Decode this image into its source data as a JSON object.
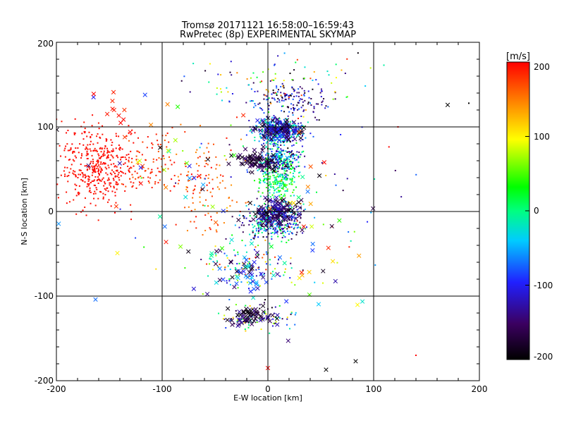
{
  "colors": {
    "background": "#ffffff",
    "axes": "#000000",
    "colorbar_scale": [
      "#000000",
      "#3b0060",
      "#2020ff",
      "#00ffff",
      "#00ff00",
      "#ffff00",
      "#ff8000",
      "#ff0000"
    ]
  },
  "chart_data": {
    "type": "scatter",
    "title": "Tromsø 20171121 16:58:00–16:59:43",
    "subtitle": "RwPretec (8p) EXPERIMENTAL SKYMAP",
    "xlabel": "E-W location [km]",
    "ylabel": "N-S location [km]",
    "xlim": [
      -200,
      200
    ],
    "ylim": [
      -200,
      200
    ],
    "x_ticks": [
      "-200",
      "-100",
      "0",
      "100",
      "200"
    ],
    "y_ticks": [
      "-200",
      "-100",
      "0",
      "100",
      "200"
    ],
    "grid_lines": [
      -100,
      0,
      100
    ],
    "grid": true,
    "markers": [
      "point",
      "x"
    ],
    "colorbar": {
      "label": "[m/s]",
      "range": [
        -200,
        200
      ],
      "ticks": [
        "200",
        "100",
        "0",
        "-100",
        "-200"
      ]
    },
    "clusters": [
      {
        "center": [
          -160,
          55
        ],
        "spread": [
          35,
          45
        ],
        "count": 420,
        "velocity": [
          190,
          200
        ],
        "marker": "point"
      },
      {
        "center": [
          -110,
          55
        ],
        "spread": [
          25,
          40
        ],
        "count": 90,
        "velocity": [
          160,
          200
        ],
        "marker": "point"
      },
      {
        "center": [
          -60,
          30
        ],
        "spread": [
          35,
          60
        ],
        "count": 120,
        "velocity": [
          140,
          200
        ],
        "marker": "point"
      },
      {
        "center": [
          10,
          95
        ],
        "spread": [
          22,
          15
        ],
        "count": 380,
        "velocity": [
          -120,
          20
        ],
        "marker": "point"
      },
      {
        "center": [
          10,
          60
        ],
        "spread": [
          22,
          20
        ],
        "count": 320,
        "velocity": [
          -200,
          40
        ],
        "marker": "point"
      },
      {
        "center": [
          10,
          35
        ],
        "spread": [
          18,
          20
        ],
        "count": 200,
        "velocity": [
          -40,
          60
        ],
        "marker": "point"
      },
      {
        "center": [
          5,
          -10
        ],
        "spread": [
          25,
          20
        ],
        "count": 380,
        "velocity": [
          -200,
          30
        ],
        "marker": "point"
      },
      {
        "center": [
          20,
          130
        ],
        "spread": [
          35,
          20
        ],
        "count": 140,
        "velocity": [
          -200,
          -60
        ],
        "marker": "point"
      },
      {
        "center": [
          -20,
          -65
        ],
        "spread": [
          40,
          30
        ],
        "count": 110,
        "velocity": [
          -140,
          200
        ],
        "marker": "point"
      },
      {
        "center": [
          -10,
          -125
        ],
        "spread": [
          30,
          15
        ],
        "count": 90,
        "velocity": [
          -200,
          120
        ],
        "marker": "point"
      },
      {
        "center": [
          10,
          150
        ],
        "spread": [
          80,
          40
        ],
        "count": 110,
        "velocity": [
          -200,
          200
        ],
        "marker": "point"
      },
      {
        "center": [
          0,
          0
        ],
        "spread": [
          110,
          110
        ],
        "count": 90,
        "velocity": [
          -200,
          200
        ],
        "marker": "point"
      },
      {
        "center": [
          10,
          95
        ],
        "spread": [
          22,
          12
        ],
        "count": 110,
        "velocity": [
          -200,
          -80
        ],
        "marker": "x"
      },
      {
        "center": [
          -10,
          58
        ],
        "spread": [
          20,
          12
        ],
        "count": 70,
        "velocity": [
          -200,
          -140
        ],
        "marker": "x"
      },
      {
        "center": [
          10,
          0
        ],
        "spread": [
          20,
          15
        ],
        "count": 110,
        "velocity": [
          -200,
          -100
        ],
        "marker": "x"
      },
      {
        "center": [
          -20,
          -70
        ],
        "spread": [
          40,
          30
        ],
        "count": 60,
        "velocity": [
          -200,
          0
        ],
        "marker": "x"
      },
      {
        "center": [
          -15,
          -125
        ],
        "spread": [
          25,
          10
        ],
        "count": 50,
        "velocity": [
          -200,
          -120
        ],
        "marker": "x"
      },
      {
        "center": [
          -100,
          40
        ],
        "spread": [
          80,
          100
        ],
        "count": 40,
        "velocity": [
          -200,
          200
        ],
        "marker": "x"
      },
      {
        "center": [
          -150,
          110
        ],
        "spread": [
          25,
          30
        ],
        "count": 12,
        "velocity": [
          180,
          200
        ],
        "marker": "x"
      },
      {
        "center": [
          40,
          -30
        ],
        "spread": [
          60,
          120
        ],
        "count": 40,
        "velocity": [
          -200,
          200
        ],
        "marker": "x"
      },
      {
        "center": [
          -20,
          -120
        ],
        "spread": [
          8,
          6
        ],
        "count": 12,
        "velocity": [
          -200,
          -180
        ],
        "marker": "x"
      }
    ],
    "notable_points": [
      {
        "x": 170,
        "y": 126,
        "velocity": -200,
        "marker": "x"
      },
      {
        "x": 190,
        "y": 128,
        "velocity": -200,
        "marker": "point"
      },
      {
        "x": -163,
        "y": -104,
        "velocity": -70,
        "marker": "x"
      },
      {
        "x": 55,
        "y": -187,
        "velocity": -200,
        "marker": "x"
      },
      {
        "x": 83,
        "y": -177,
        "velocity": -200,
        "marker": "x"
      },
      {
        "x": 0,
        "y": -185,
        "velocity": 200,
        "marker": "x"
      },
      {
        "x": 123,
        "y": 100,
        "velocity": 200,
        "marker": "point"
      },
      {
        "x": 140,
        "y": -170,
        "velocity": 200,
        "marker": "point"
      },
      {
        "x": -65,
        "y": 42,
        "velocity": 200,
        "marker": "x"
      }
    ]
  }
}
